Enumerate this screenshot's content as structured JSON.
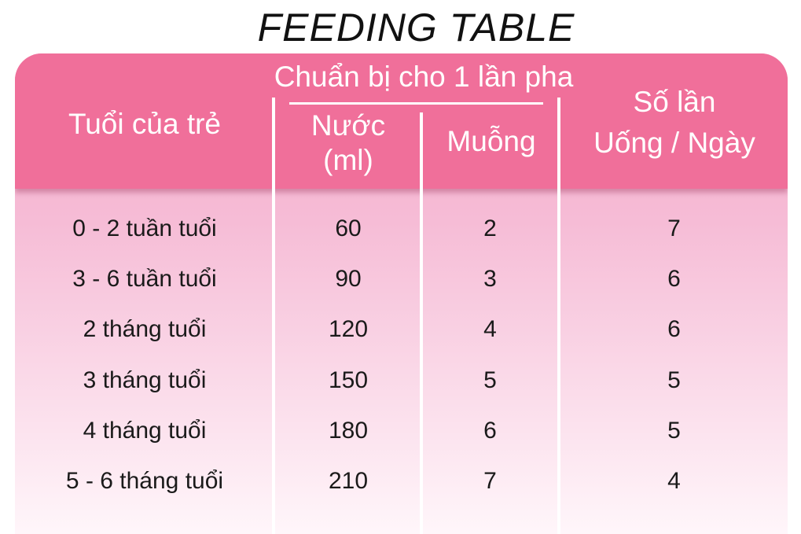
{
  "title": "FEEDING TABLE",
  "header": {
    "age": "Tuổi của trẻ",
    "group": "Chuẩn bị cho 1 lần pha",
    "water_line1": "Nước",
    "water_line2": "(ml)",
    "spoons": "Muỗng",
    "times_line1": "Số lần",
    "times_line2": "Uống / Ngày"
  },
  "rows": [
    {
      "age": "0 - 2 tuần tuổi",
      "water": "60",
      "spoons": "2",
      "times": "7"
    },
    {
      "age": "3 - 6 tuần tuổi",
      "water": "90",
      "spoons": "3",
      "times": "6"
    },
    {
      "age": "2 tháng tuổi",
      "water": "120",
      "spoons": "4",
      "times": "6"
    },
    {
      "age": "3 tháng tuổi",
      "water": "150",
      "spoons": "5",
      "times": "5"
    },
    {
      "age": "4 tháng tuổi",
      "water": "180",
      "spoons": "6",
      "times": "5"
    },
    {
      "age": "5 - 6 tháng tuổi",
      "water": "210",
      "spoons": "7",
      "times": "4"
    }
  ],
  "colors": {
    "header": "#f06f9a",
    "body_top": "#f3a9c9",
    "body_bottom": "#fff6fa",
    "divider": "#ffffff"
  }
}
